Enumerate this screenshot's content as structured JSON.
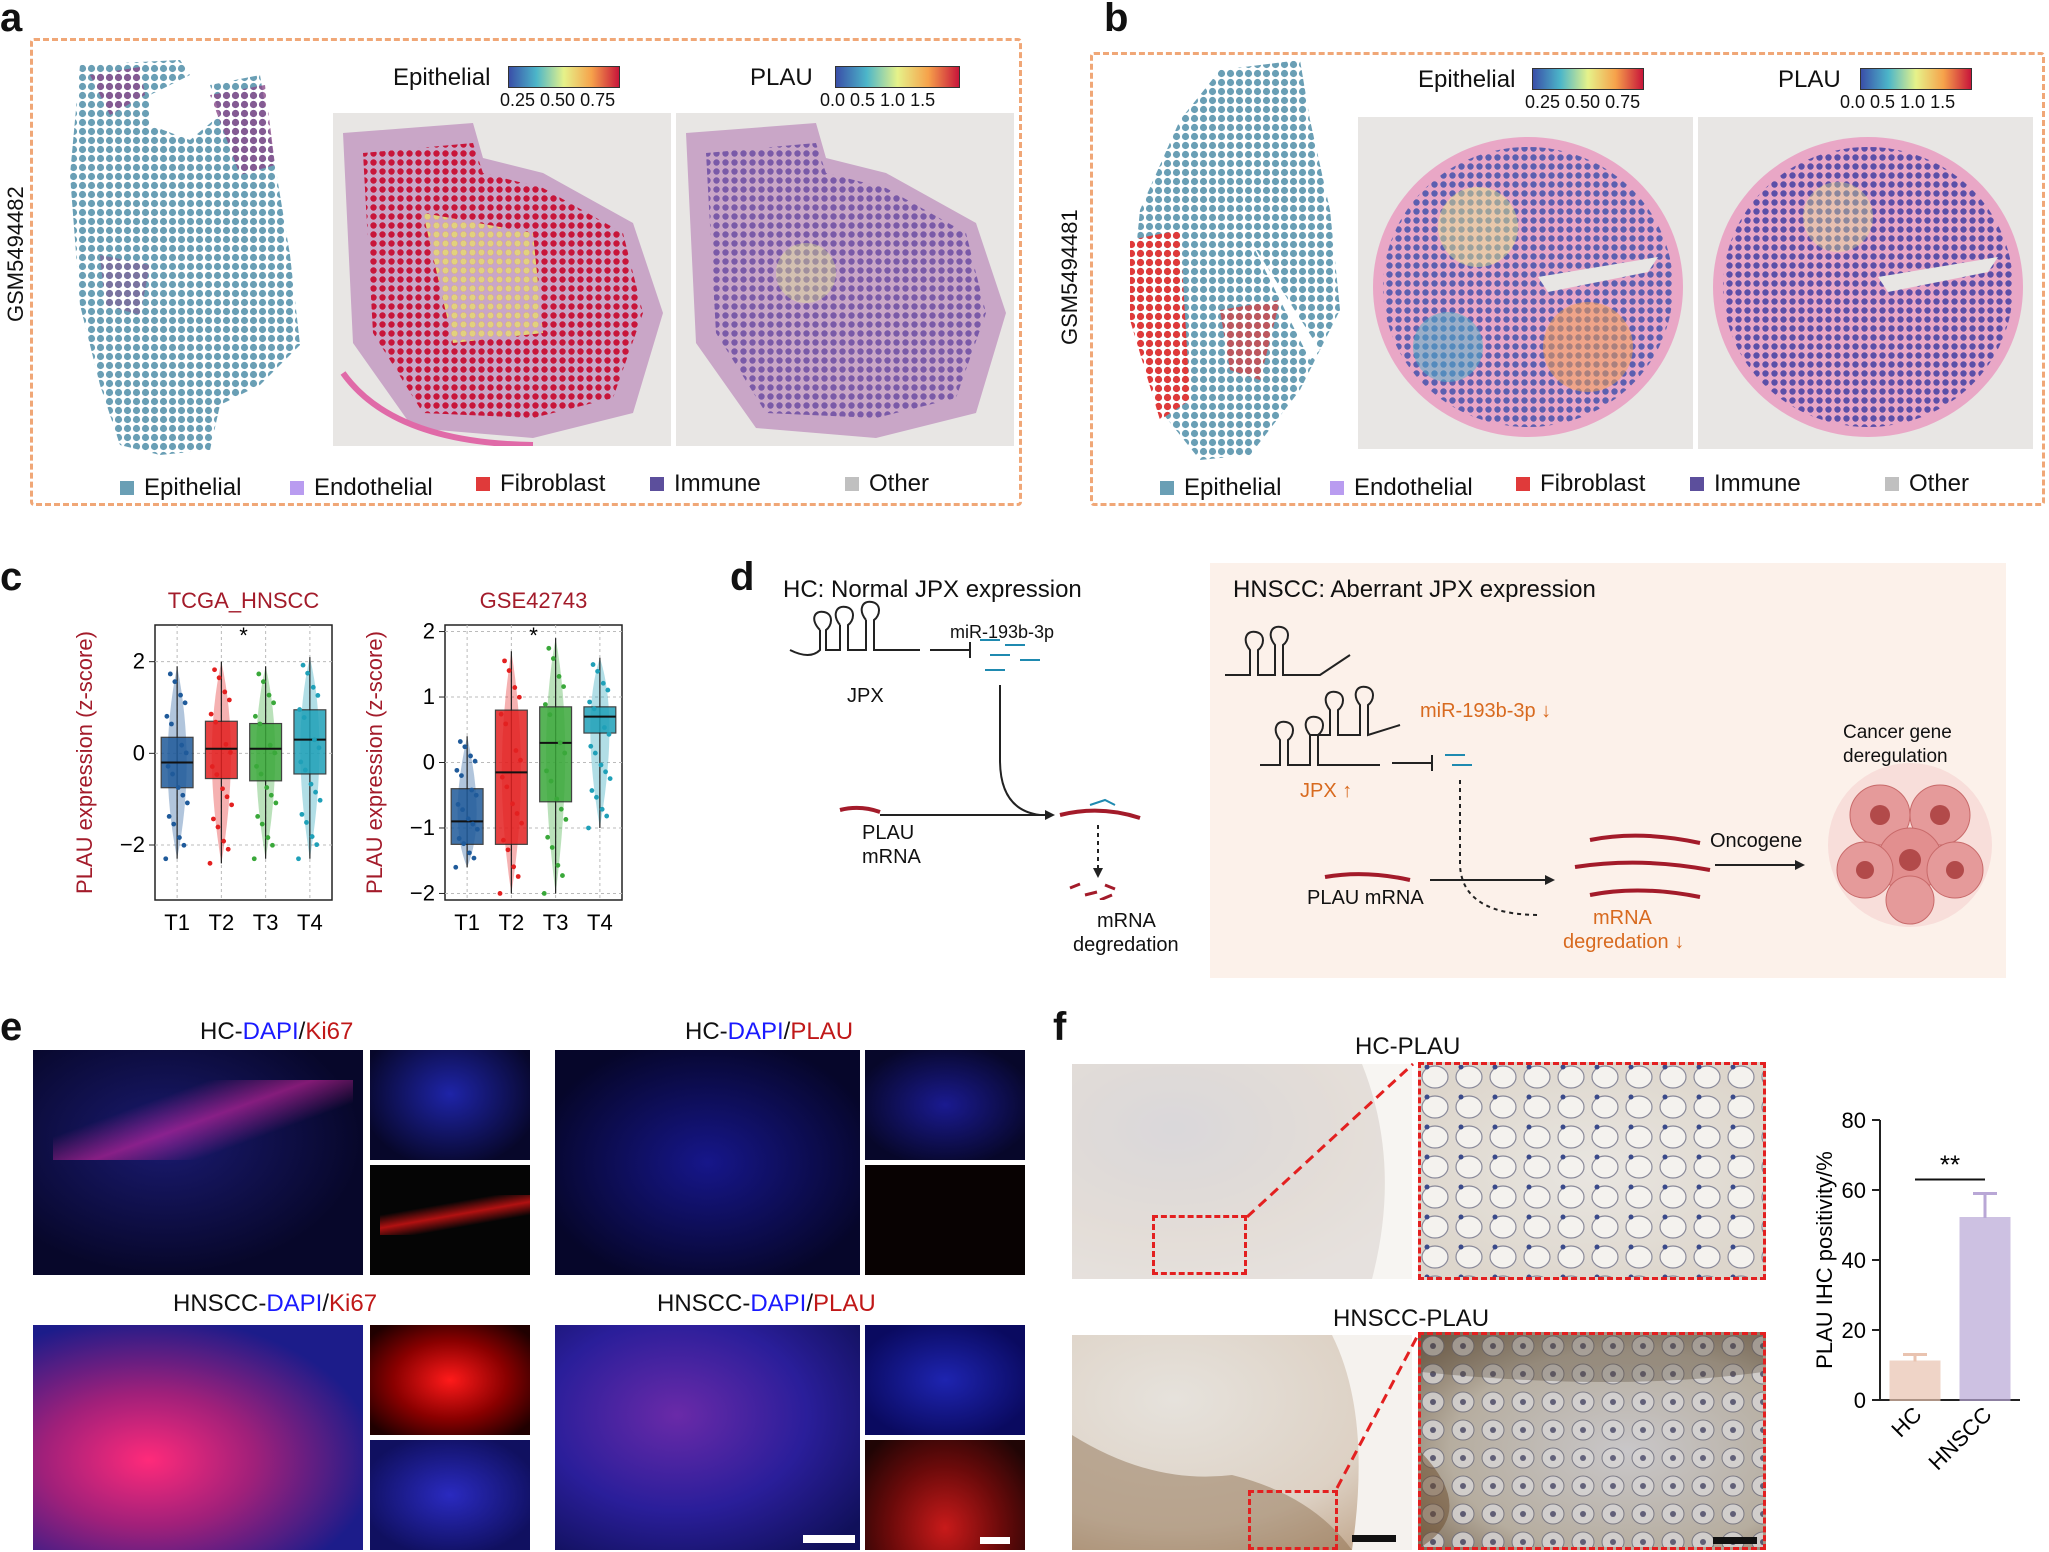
{
  "panels": {
    "a": {
      "letter": "a",
      "sample_id": "GSM5494482",
      "colorbar_epithelial": {
        "title": "Epithelial",
        "ticks": "0.25 0.50 0.75"
      },
      "colorbar_plau": {
        "title": "PLAU",
        "ticks": "0.0 0.5 1.0 1.5"
      }
    },
    "b": {
      "letter": "b",
      "sample_id": "GSM5494481",
      "colorbar_epithelial": {
        "title": "Epithelial",
        "ticks": "0.25 0.50 0.75"
      },
      "colorbar_plau": {
        "title": "PLAU",
        "ticks": "0.0 0.5 1.0 1.5"
      }
    },
    "c": {
      "letter": "c"
    },
    "d": {
      "letter": "d",
      "hc_title": "HC: Normal JPX expression",
      "hc_mir": "miR-193b-3p",
      "hc_jpx": "JPX",
      "hc_plau_line1": "PLAU",
      "hc_plau_line2": "mRNA",
      "hc_deg_line1": "mRNA",
      "hc_deg_line2": "degredation",
      "hnscc_title": "HNSCC: Aberrant JPX expression",
      "hnscc_mir": "miR-193b-3p ↓",
      "hnscc_jpx": "JPX ↑",
      "hnscc_plau": "PLAU mRNA",
      "hnscc_deg_line1": "mRNA",
      "hnscc_deg_line2": "degredation ↓",
      "oncogene": "Oncogene",
      "cancer_line1": "Cancer gene",
      "cancer_line2": "deregulation"
    },
    "e": {
      "letter": "e",
      "t1_prefix": "HC-",
      "t1_dapi": "DAPI",
      "t1_sep": "/",
      "t1_marker": "Ki67",
      "t2_prefix": "HC-",
      "t2_dapi": "DAPI",
      "t2_sep": "/",
      "t2_marker": "PLAU",
      "t3_prefix": "HNSCC-",
      "t3_dapi": "DAPI",
      "t3_sep": "/",
      "t3_marker": "Ki67",
      "t4_prefix": "HNSCC-",
      "t4_dapi": "DAPI",
      "t4_sep": "/",
      "t4_marker": "PLAU"
    },
    "f": {
      "letter": "f",
      "hc_title": "HC-PLAU",
      "hnscc_title": "HNSCC-PLAU"
    }
  },
  "legend": [
    {
      "label": "Epithelial",
      "color": "#6a9fb5"
    },
    {
      "label": "Endothelial",
      "color": "#b99cf0"
    },
    {
      "label": "Fibroblast",
      "color": "#e03a3a"
    },
    {
      "label": "Immune",
      "color": "#5c4f9c"
    },
    {
      "label": "Other",
      "color": "#c0c0c0"
    }
  ],
  "chart_data": [
    {
      "type": "box",
      "title": "TCGA_HNSCC",
      "ylabel": "PLAU expression (z-score)",
      "categories": [
        "T1",
        "T2",
        "T3",
        "T4"
      ],
      "ylim": [
        -3.2,
        2.8
      ],
      "yticks": [
        "−2",
        "0",
        "2"
      ],
      "yticks_values": [
        -2,
        0,
        2
      ],
      "significance": "*",
      "series": [
        {
          "category": "T1",
          "color": "#1f5a9a",
          "q1": -0.75,
          "median": -0.2,
          "q3": 0.35,
          "whisker_low": -2.3,
          "whisker_high": 1.9
        },
        {
          "category": "T2",
          "color": "#e32020",
          "q1": -0.55,
          "median": 0.1,
          "q3": 0.7,
          "whisker_low": -2.4,
          "whisker_high": 2.0
        },
        {
          "category": "T3",
          "color": "#3aa83a",
          "q1": -0.6,
          "median": 0.1,
          "q3": 0.65,
          "whisker_low": -2.3,
          "whisker_high": 1.9
        },
        {
          "category": "T4",
          "color": "#1fa0b8",
          "q1": -0.45,
          "median": 0.3,
          "q3": 0.95,
          "whisker_low": -2.3,
          "whisker_high": 2.1
        }
      ]
    },
    {
      "type": "box",
      "title": "GSE42743",
      "ylabel": "PLAU expression (z-score)",
      "categories": [
        "T1",
        "T2",
        "T3",
        "T4"
      ],
      "ylim": [
        -2.1,
        2.1
      ],
      "yticks": [
        "−2",
        "−1",
        "0",
        "1",
        "2"
      ],
      "yticks_values": [
        -2,
        -1,
        0,
        1,
        2
      ],
      "significance": "*",
      "series": [
        {
          "category": "T1",
          "color": "#1f5a9a",
          "q1": -1.25,
          "median": -0.9,
          "q3": -0.4,
          "whisker_low": -1.6,
          "whisker_high": 0.4
        },
        {
          "category": "T2",
          "color": "#e32020",
          "q1": -1.25,
          "median": -0.15,
          "q3": 0.8,
          "whisker_low": -2.0,
          "whisker_high": 1.7
        },
        {
          "category": "T3",
          "color": "#3aa83a",
          "q1": -0.6,
          "median": 0.3,
          "q3": 0.85,
          "whisker_low": -2.0,
          "whisker_high": 1.9
        },
        {
          "category": "T4",
          "color": "#1fa0b8",
          "q1": 0.45,
          "median": 0.7,
          "q3": 0.85,
          "whisker_low": -1.0,
          "whisker_high": 1.6
        }
      ]
    },
    {
      "type": "bar",
      "title": "",
      "ylabel": "PLAU IHC positivity/%",
      "categories": [
        "HC",
        "HNSCC"
      ],
      "values": [
        11,
        52
      ],
      "errors": [
        2,
        7
      ],
      "colors": [
        "#e9c3b0",
        "#b9a7d6"
      ],
      "ylim": [
        0,
        80
      ],
      "yticks": [
        "0",
        "20",
        "40",
        "60",
        "80"
      ],
      "yticks_values": [
        0,
        20,
        40,
        60,
        80
      ],
      "significance": "**"
    }
  ]
}
